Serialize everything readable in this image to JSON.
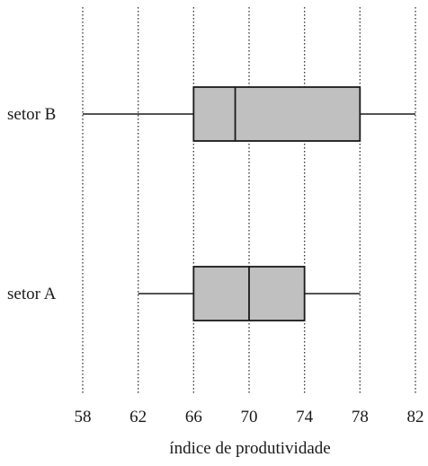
{
  "chart_data": {
    "type": "boxplot",
    "orientation": "horizontal",
    "xlabel": "índice de produtividade",
    "ylabel": "",
    "title": "",
    "xlim": [
      58,
      82
    ],
    "xticks": [
      58,
      62,
      66,
      70,
      74,
      78,
      82
    ],
    "grid": "vertical dotted lines at each x tick",
    "colors": {
      "box_fill": "#c0c0c0",
      "line": "#1a1a1a",
      "grid": "#333333",
      "background": "#ffffff"
    },
    "series": [
      {
        "name": "setor B",
        "min": 58,
        "q1": 66,
        "median": 69,
        "q3": 78,
        "max": 82
      },
      {
        "name": "setor A",
        "min": 62,
        "q1": 66,
        "median": 70,
        "q3": 74,
        "max": 78
      }
    ]
  }
}
